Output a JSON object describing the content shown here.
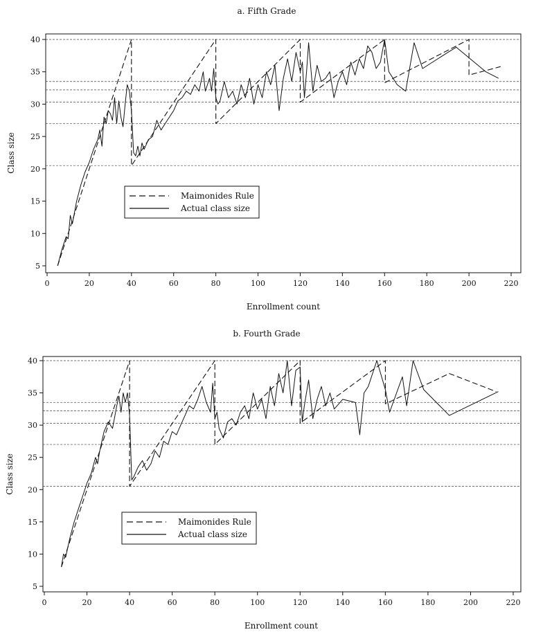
{
  "chart_data": [
    {
      "type": "line",
      "title": "a. Fifth Grade",
      "xlabel": "Enrollment count",
      "ylabel": "Class size",
      "xlim": [
        0,
        220
      ],
      "ylim": [
        5,
        40
      ],
      "xticks": [
        0,
        20,
        40,
        60,
        80,
        100,
        120,
        140,
        160,
        180,
        200,
        220
      ],
      "yticks": [
        5,
        10,
        15,
        20,
        25,
        30,
        35,
        40
      ],
      "reference_lines": [
        20.5,
        27,
        30.3,
        32.2,
        33.5,
        40
      ],
      "legend": {
        "position": "center-left",
        "entries": [
          "Maimonides Rule",
          "Actual class size"
        ]
      },
      "series": [
        {
          "name": "Maimonides Rule",
          "style": "dashed",
          "x": [
            5,
            40,
            40.01,
            80,
            80.01,
            120,
            120.01,
            160,
            160.01,
            200,
            200.01,
            215
          ],
          "y": [
            5,
            40,
            20.5,
            40,
            27,
            40,
            30.3,
            40,
            33.3,
            40,
            34.5,
            35.8
          ]
        },
        {
          "name": "Actual class size",
          "style": "solid",
          "x": [
            5,
            7,
            9,
            10,
            11,
            12,
            14,
            16,
            18,
            20,
            22,
            24,
            25,
            26,
            27,
            28,
            29,
            30,
            31,
            32,
            33,
            34,
            35,
            36,
            37,
            38,
            39,
            40,
            41,
            42,
            43,
            44,
            45,
            46,
            48,
            50,
            52,
            54,
            56,
            58,
            60,
            62,
            64,
            66,
            68,
            70,
            72,
            74,
            75,
            76,
            77,
            78,
            79,
            80,
            81,
            82,
            84,
            86,
            88,
            90,
            92,
            94,
            96,
            98,
            100,
            102,
            104,
            106,
            108,
            110,
            112,
            114,
            116,
            118,
            120,
            121,
            122,
            123,
            124,
            126,
            128,
            130,
            132,
            134,
            136,
            138,
            140,
            142,
            144,
            146,
            148,
            150,
            152,
            154,
            156,
            158,
            160,
            162,
            166,
            170,
            174,
            178,
            190,
            194,
            208,
            214
          ],
          "y": [
            5,
            7.5,
            9.5,
            9.2,
            12.8,
            11.5,
            15,
            17.5,
            19.5,
            21,
            23,
            24.5,
            26,
            23.5,
            28,
            27,
            29,
            28.5,
            27.5,
            31,
            27,
            30.5,
            28,
            26.5,
            30,
            33,
            32,
            29,
            22.5,
            22,
            23.5,
            22,
            24,
            23,
            24.5,
            25,
            27.5,
            26,
            27,
            28,
            29,
            30.5,
            31,
            32,
            31.5,
            33,
            32,
            35,
            32,
            33,
            34,
            32,
            35.5,
            31,
            30,
            30.5,
            33.5,
            31,
            32,
            30,
            33,
            31,
            34,
            30,
            33,
            31,
            35,
            33,
            36,
            29,
            34,
            37,
            33.5,
            38,
            35,
            36.5,
            31,
            35,
            39.5,
            32,
            36,
            33.5,
            34,
            35,
            31,
            33.5,
            35,
            33,
            36.5,
            34.5,
            37,
            35.5,
            39,
            38,
            35.5,
            36.5,
            40,
            35,
            33,
            32,
            39.5,
            35.5,
            38,
            38.8,
            35,
            34
          ]
        }
      ]
    },
    {
      "type": "line",
      "title": "b. Fourth Grade",
      "xlabel": "Enrollment count",
      "ylabel": "Class size",
      "xlim": [
        0,
        220
      ],
      "ylim": [
        5,
        40
      ],
      "xticks": [
        0,
        20,
        40,
        60,
        80,
        100,
        120,
        140,
        160,
        180,
        200,
        220
      ],
      "yticks": [
        5,
        10,
        15,
        20,
        25,
        30,
        35,
        40
      ],
      "reference_lines": [
        20.5,
        27,
        30.3,
        32.2,
        33.5,
        40
      ],
      "legend": {
        "position": "center-left",
        "entries": [
          "Maimonides Rule",
          "Actual class size"
        ]
      },
      "series": [
        {
          "name": "Maimonides Rule",
          "style": "dashed",
          "x": [
            8,
            40,
            40.01,
            80,
            80.01,
            120,
            120.01,
            160,
            160.01,
            190,
            212
          ],
          "y": [
            8,
            40,
            20.5,
            40,
            27,
            40,
            30.3,
            40,
            33.3,
            38,
            35.2
          ]
        },
        {
          "name": "Actual class size",
          "style": "solid",
          "x": [
            8,
            9,
            10,
            11,
            12,
            14,
            16,
            18,
            20,
            22,
            24,
            25,
            26,
            28,
            30,
            32,
            34,
            35,
            36,
            37,
            38,
            39,
            40,
            41,
            42,
            44,
            46,
            48,
            50,
            52,
            54,
            56,
            58,
            60,
            62,
            64,
            66,
            68,
            70,
            72,
            74,
            76,
            78,
            79,
            80,
            81,
            82,
            84,
            86,
            88,
            90,
            92,
            94,
            96,
            98,
            100,
            102,
            104,
            106,
            108,
            110,
            112,
            114,
            116,
            118,
            120,
            121,
            122,
            124,
            126,
            128,
            130,
            132,
            134,
            136,
            140,
            146,
            148,
            150,
            152,
            156,
            160,
            162,
            168,
            170,
            173,
            178,
            190,
            213
          ],
          "y": [
            8,
            10,
            9.5,
            11,
            12.5,
            15,
            17,
            19,
            21,
            22.5,
            25,
            24,
            26,
            29,
            30.5,
            29.5,
            33,
            34.5,
            32,
            35,
            33.5,
            35,
            31.5,
            21.5,
            22,
            23.5,
            24.5,
            23,
            24,
            26,
            25,
            27.5,
            27,
            29,
            28.5,
            30,
            31.5,
            33,
            32.5,
            34,
            36,
            33.5,
            32,
            36.5,
            31,
            32,
            29.5,
            28,
            30.5,
            31,
            30,
            32,
            33,
            31,
            35,
            32.5,
            34,
            31,
            36,
            33,
            38,
            35,
            40,
            33,
            38.5,
            39,
            30.5,
            33,
            37,
            31,
            34,
            36,
            33,
            35,
            32.5,
            34,
            33.5,
            28.5,
            35,
            36,
            40,
            35.5,
            32,
            37.5,
            33,
            40,
            35.5,
            31.5,
            35.2
          ]
        }
      ]
    }
  ]
}
